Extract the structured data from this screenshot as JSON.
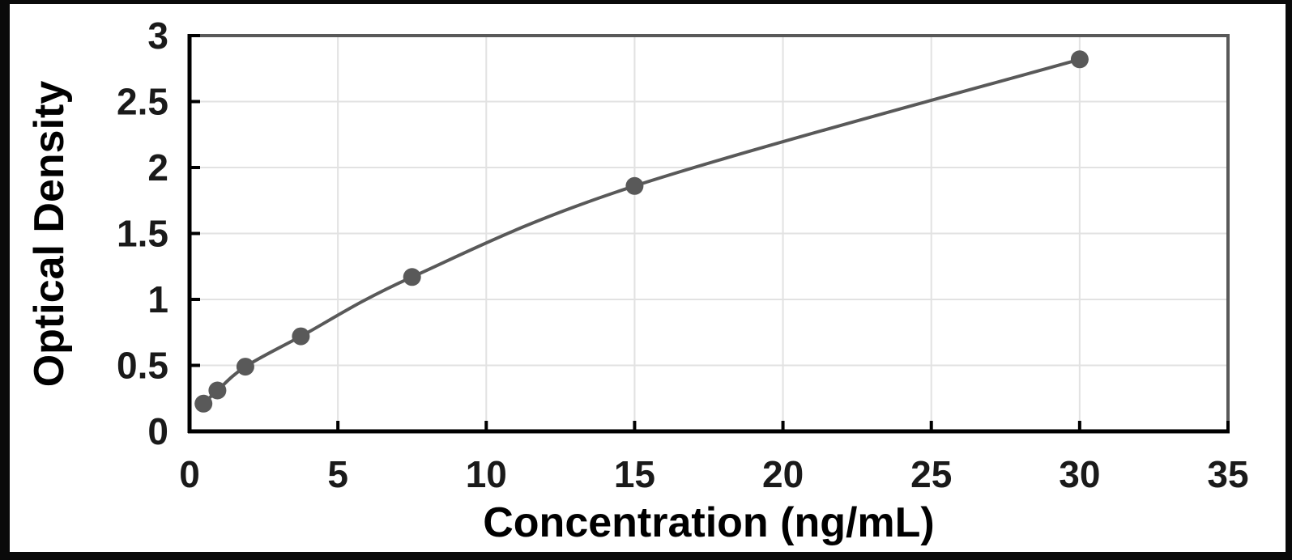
{
  "chart_data": {
    "type": "line",
    "title": "",
    "xlabel": "Concentration (ng/mL)",
    "ylabel": "Optical Density",
    "x": [
      0.47,
      0.94,
      1.88,
      3.75,
      7.5,
      15,
      30
    ],
    "y": [
      0.21,
      0.31,
      0.49,
      0.72,
      1.17,
      1.86,
      2.82
    ],
    "xlim": [
      0,
      35
    ],
    "ylim": [
      0,
      3
    ],
    "x_ticks": [
      0,
      5,
      10,
      15,
      20,
      25,
      30,
      35
    ],
    "y_ticks": [
      0,
      0.5,
      1,
      1.5,
      2,
      2.5,
      3
    ],
    "grid": true,
    "legend": "none",
    "marker": "circle",
    "colors": {
      "series": "#595959",
      "marker": "#595959",
      "gridline": "#e2e2e2",
      "plot_border": "#595959",
      "axis": "#000000",
      "frame": "#0a0a0a",
      "background": "#ffffff"
    }
  }
}
